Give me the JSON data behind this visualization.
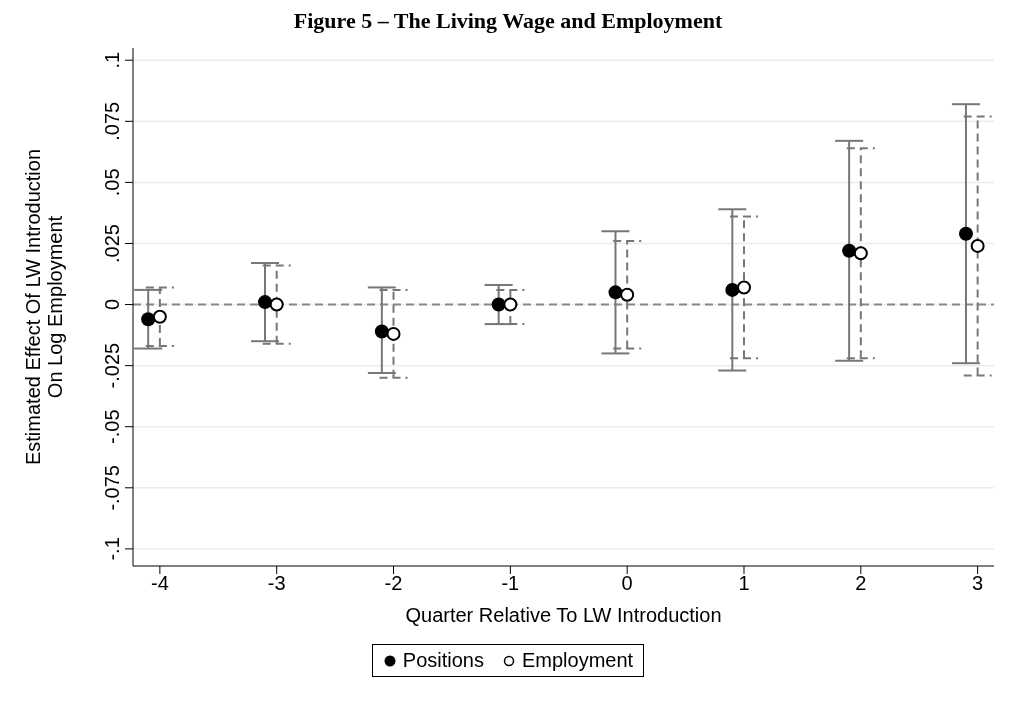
{
  "chart_data": {
    "type": "scatter",
    "title": "Figure 5 – The Living Wage and Employment",
    "xlabel": "Quarter Relative To LW Introduction",
    "ylabel": "Estimated Effect Of LW Introduction\nOn Log Employment",
    "xlim": [
      -4.23,
      3.14
    ],
    "xticks": [
      -4,
      -3,
      -2,
      -1,
      0,
      1,
      2,
      3
    ],
    "ylim": [
      -0.107,
      0.105
    ],
    "yticks": [
      {
        "value": -0.1,
        "label": "-.1"
      },
      {
        "value": -0.075,
        "label": "-.075"
      },
      {
        "value": -0.05,
        "label": "-.05"
      },
      {
        "value": -0.025,
        "label": "-.025"
      },
      {
        "value": 0,
        "label": "0"
      },
      {
        "value": 0.025,
        "label": ".025"
      },
      {
        "value": 0.05,
        "label": ".05"
      },
      {
        "value": 0.075,
        "label": ".075"
      },
      {
        "value": 0.1,
        "label": ".1"
      }
    ],
    "grid": "y",
    "legend": "bottom",
    "marker": "circle",
    "ref_lines": [
      {
        "axis": "y",
        "value": 0,
        "color": "#888888",
        "line_style": "dashed"
      }
    ],
    "series": [
      {
        "name": "Positions",
        "color": "#000000",
        "line_style": "solid",
        "x": [
          -4.1,
          -3.1,
          -2.1,
          -1.1,
          -0.1,
          0.9,
          1.9,
          2.9
        ],
        "values": [
          -0.006,
          0.001,
          -0.011,
          0,
          0.005,
          0.006,
          0.022,
          0.029
        ],
        "errors": [
          [
            -0.018,
            0.006
          ],
          [
            -0.015,
            0.017
          ],
          [
            -0.028,
            0.007
          ],
          [
            -0.008,
            0.008
          ],
          [
            -0.02,
            0.03
          ],
          [
            -0.027,
            0.039
          ],
          [
            -0.023,
            0.067
          ],
          [
            -0.024,
            0.082
          ]
        ]
      },
      {
        "name": "Employment",
        "color": "#000000",
        "line_style": "dashed",
        "x": [
          -4,
          -3,
          -2,
          -1,
          0,
          1,
          2,
          3
        ],
        "values": [
          -0.005,
          0,
          -0.012,
          0,
          0.004,
          0.007,
          0.021,
          0.024
        ],
        "errors": [
          [
            -0.017,
            0.007
          ],
          [
            -0.016,
            0.016
          ],
          [
            -0.03,
            0.006
          ],
          [
            -0.008,
            0.006
          ],
          [
            -0.018,
            0.026
          ],
          [
            -0.022,
            0.036
          ],
          [
            -0.022,
            0.064
          ],
          [
            -0.029,
            0.077
          ]
        ]
      }
    ]
  }
}
